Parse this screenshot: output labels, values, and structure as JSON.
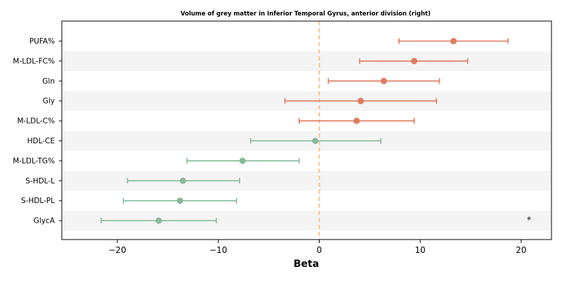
{
  "chart_data": {
    "type": "forest",
    "title": "Volume of grey matter in Inferior Temporal Gyrus, anterior division (right)",
    "xlabel": "Beta",
    "xlim": [
      -25.5,
      23
    ],
    "xticks": [
      -20,
      -10,
      0,
      10,
      20
    ],
    "xtick_labels": [
      "−20",
      "−10",
      "0",
      "10",
      "20"
    ],
    "reference_line": 0,
    "rows": [
      {
        "label": "PUFA%",
        "beta": 13.3,
        "lower": 7.9,
        "upper": 18.7,
        "direction": "positive",
        "marker": ""
      },
      {
        "label": "M-LDL-FC%",
        "beta": 9.4,
        "lower": 4.0,
        "upper": 14.7,
        "direction": "positive",
        "marker": ""
      },
      {
        "label": "Gln",
        "beta": 6.4,
        "lower": 0.9,
        "upper": 11.9,
        "direction": "positive",
        "marker": ""
      },
      {
        "label": "Gly",
        "beta": 4.1,
        "lower": -3.4,
        "upper": 11.6,
        "direction": "positive",
        "marker": ""
      },
      {
        "label": "M-LDL-C%",
        "beta": 3.7,
        "lower": -2.0,
        "upper": 9.4,
        "direction": "positive",
        "marker": ""
      },
      {
        "label": "HDL-CE",
        "beta": -0.4,
        "lower": -6.8,
        "upper": 6.1,
        "direction": "negative",
        "marker": ""
      },
      {
        "label": "M-LDL-TG%",
        "beta": -7.6,
        "lower": -13.1,
        "upper": -2.0,
        "direction": "negative",
        "marker": ""
      },
      {
        "label": "S-HDL-L",
        "beta": -13.5,
        "lower": -19.0,
        "upper": -7.9,
        "direction": "negative",
        "marker": ""
      },
      {
        "label": "S-HDL-PL",
        "beta": -13.8,
        "lower": -19.4,
        "upper": -8.2,
        "direction": "negative",
        "marker": ""
      },
      {
        "label": "GlycA",
        "beta": -15.9,
        "lower": -21.6,
        "upper": -10.2,
        "direction": "negative",
        "marker": "*"
      }
    ],
    "colors": {
      "positive": "#e07b5f",
      "negative": "#86b89b",
      "reference_line": "#f0c987",
      "band": "#f4f4f4"
    },
    "grid": false
  }
}
